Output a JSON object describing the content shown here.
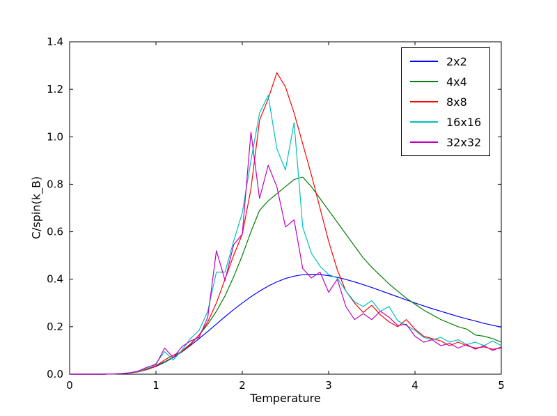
{
  "chart_data": {
    "type": "line",
    "title": "",
    "xlabel": "Temperature",
    "ylabel": "C/spin(k_B)",
    "xlim": [
      0,
      5
    ],
    "ylim": [
      0.0,
      1.4
    ],
    "xticks": [
      0,
      1,
      2,
      3,
      4,
      5
    ],
    "yticks": [
      0.0,
      0.2,
      0.4,
      0.6,
      0.8,
      1.0,
      1.2,
      1.4
    ],
    "grid": false,
    "legend_position": "upper right",
    "x": [
      0.0,
      0.1,
      0.2,
      0.3,
      0.4,
      0.5,
      0.6,
      0.7,
      0.8,
      0.9,
      1.0,
      1.1,
      1.2,
      1.3,
      1.4,
      1.5,
      1.6,
      1.7,
      1.8,
      1.9,
      2.0,
      2.1,
      2.2,
      2.3,
      2.4,
      2.5,
      2.6,
      2.7,
      2.8,
      2.9,
      3.0,
      3.1,
      3.2,
      3.3,
      3.4,
      3.5,
      3.6,
      3.7,
      3.8,
      3.9,
      4.0,
      4.1,
      4.2,
      4.3,
      4.4,
      4.5,
      4.6,
      4.7,
      4.8,
      4.9,
      5.0
    ],
    "series": [
      {
        "name": "2x2",
        "color": "#0000ff",
        "values": [
          0,
          0,
          0,
          0,
          0,
          0.001,
          0.002,
          0.005,
          0.011,
          0.02,
          0.033,
          0.05,
          0.07,
          0.094,
          0.121,
          0.15,
          0.18,
          0.211,
          0.242,
          0.272,
          0.3,
          0.326,
          0.35,
          0.371,
          0.389,
          0.403,
          0.413,
          0.419,
          0.421,
          0.42,
          0.415,
          0.408,
          0.399,
          0.389,
          0.377,
          0.365,
          0.352,
          0.339,
          0.326,
          0.313,
          0.3,
          0.288,
          0.276,
          0.265,
          0.254,
          0.243,
          0.233,
          0.224,
          0.214,
          0.206,
          0.198
        ]
      },
      {
        "name": "4x4",
        "color": "#007f00",
        "values": [
          0,
          0,
          0,
          0,
          0,
          0.001,
          0.003,
          0.006,
          0.012,
          0.022,
          0.035,
          0.052,
          0.072,
          0.097,
          0.128,
          0.165,
          0.21,
          0.265,
          0.33,
          0.41,
          0.5,
          0.6,
          0.69,
          0.73,
          0.76,
          0.79,
          0.82,
          0.83,
          0.79,
          0.74,
          0.69,
          0.64,
          0.59,
          0.54,
          0.49,
          0.45,
          0.415,
          0.38,
          0.35,
          0.32,
          0.295,
          0.27,
          0.25,
          0.23,
          0.215,
          0.2,
          0.19,
          0.165,
          0.16,
          0.15,
          0.135
        ]
      },
      {
        "name": "8x8",
        "color": "#ff0000",
        "values": [
          0,
          0,
          0,
          0,
          0,
          0.001,
          0.002,
          0.005,
          0.01,
          0.02,
          0.035,
          0.06,
          0.08,
          0.095,
          0.125,
          0.165,
          0.22,
          0.3,
          0.4,
          0.5,
          0.59,
          0.78,
          1.07,
          1.16,
          1.27,
          1.21,
          1.1,
          0.97,
          0.84,
          0.7,
          0.56,
          0.44,
          0.35,
          0.3,
          0.26,
          0.29,
          0.25,
          0.22,
          0.2,
          0.23,
          0.19,
          0.16,
          0.15,
          0.14,
          0.12,
          0.135,
          0.12,
          0.11,
          0.115,
          0.105,
          0.11
        ]
      },
      {
        "name": "16x16",
        "color": "#00bfbf",
        "values": [
          0,
          0,
          0,
          0,
          0,
          0.001,
          0.002,
          0.005,
          0.012,
          0.025,
          0.045,
          0.095,
          0.06,
          0.1,
          0.15,
          0.185,
          0.265,
          0.43,
          0.43,
          0.56,
          0.68,
          0.9,
          1.1,
          1.175,
          0.95,
          0.86,
          1.06,
          0.62,
          0.51,
          0.455,
          0.42,
          0.405,
          0.35,
          0.305,
          0.285,
          0.31,
          0.265,
          0.285,
          0.225,
          0.205,
          0.185,
          0.155,
          0.145,
          0.155,
          0.135,
          0.145,
          0.125,
          0.135,
          0.12,
          0.14,
          0.12
        ]
      },
      {
        "name": "32x32",
        "color": "#bf00bf",
        "values": [
          0,
          0,
          0,
          0,
          0,
          0.001,
          0.002,
          0.006,
          0.014,
          0.03,
          0.04,
          0.11,
          0.07,
          0.115,
          0.14,
          0.155,
          0.24,
          0.52,
          0.395,
          0.545,
          0.59,
          1.02,
          0.74,
          0.88,
          0.79,
          0.62,
          0.65,
          0.445,
          0.405,
          0.43,
          0.345,
          0.4,
          0.285,
          0.23,
          0.255,
          0.23,
          0.265,
          0.24,
          0.205,
          0.21,
          0.16,
          0.135,
          0.145,
          0.12,
          0.13,
          0.11,
          0.125,
          0.105,
          0.12,
          0.1,
          0.115
        ]
      }
    ]
  }
}
